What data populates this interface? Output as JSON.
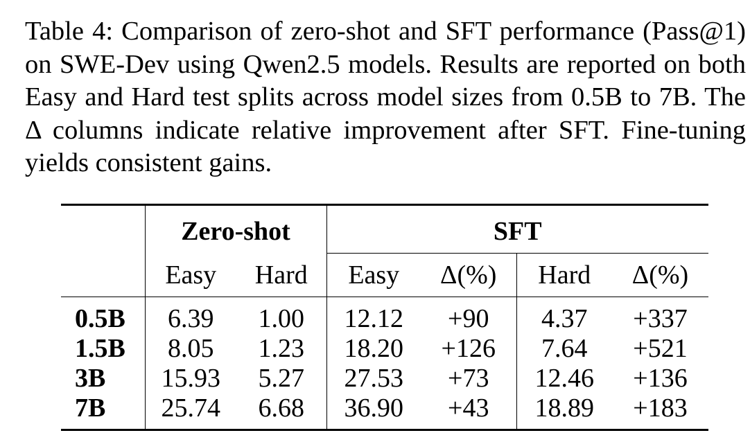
{
  "caption": "Table 4: Comparison of zero-shot and SFT performance (Pass@1) on SWE-Dev using Qwen2.5 models. Results are reported on both Easy and Hard test splits across model sizes from 0.5B to 7B. The Δ columns indicate relative improvement after SFT. Fine-tuning yields consistent gains.",
  "table": {
    "group_headers": {
      "zero_shot": "Zero-shot",
      "sft": "SFT"
    },
    "sub_headers": [
      "Easy",
      "Hard",
      "Easy",
      "Δ(%)",
      "Hard",
      "Δ(%)"
    ],
    "rows": [
      {
        "model": "0.5B",
        "cells": [
          "6.39",
          "1.00",
          "12.12",
          "+90",
          "4.37",
          "+337"
        ]
      },
      {
        "model": "1.5B",
        "cells": [
          "8.05",
          "1.23",
          "18.20",
          "+126",
          "7.64",
          "+521"
        ]
      },
      {
        "model": "3B",
        "cells": [
          "15.93",
          "5.27",
          "27.53",
          "+73",
          "12.46",
          "+136"
        ]
      },
      {
        "model": "7B",
        "cells": [
          "25.74",
          "6.68",
          "36.90",
          "+43",
          "18.89",
          "+183"
        ]
      }
    ]
  }
}
